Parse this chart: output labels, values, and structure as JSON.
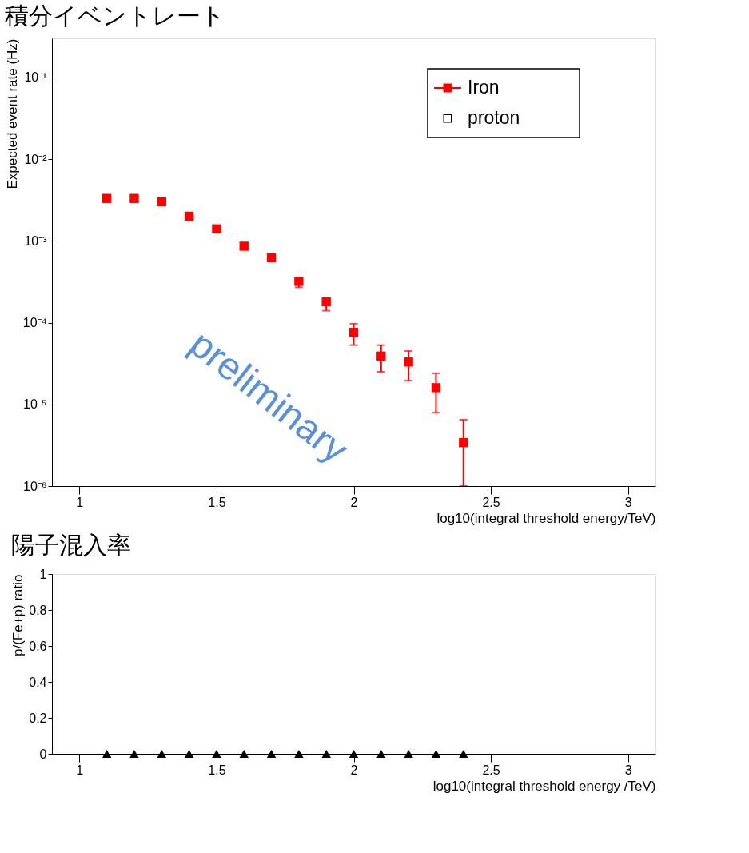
{
  "chart_data": [
    {
      "type": "scatter",
      "title": "積分イベントレート",
      "xlabel": "log10(integral threshold energy/TeV)",
      "ylabel": "Expected event rate (Hz)",
      "x": [
        1.1,
        1.2,
        1.3,
        1.4,
        1.5,
        1.6,
        1.7,
        1.8,
        1.9,
        2.0,
        2.1,
        2.2,
        2.3,
        2.4
      ],
      "series": [
        {
          "name": "Iron",
          "color": "#ff0000",
          "marker": "square",
          "values": [
            0.0033,
            0.0033,
            0.003,
            0.002,
            0.0014,
            0.00086,
            0.00062,
            0.00032,
            0.00018,
            7.6e-05,
            3.9e-05,
            3.3e-05,
            1.6e-05,
            3.4e-06
          ],
          "errors": [
            null,
            null,
            null,
            null,
            null,
            null,
            null,
            [
              0.00027,
              0.00032
            ],
            [
              0.00014,
              0.00018
            ],
            [
              5.3e-05,
              9.7e-05
            ],
            [
              2.5e-05,
              5.3e-05
            ],
            [
              1.95e-05,
              4.5e-05
            ],
            [
              7.9e-06,
              2.4e-05
            ],
            [
              1e-06,
              6.5e-06
            ]
          ]
        },
        {
          "name": "proton",
          "color": "#000000",
          "marker": "square",
          "values": [
            null,
            null,
            null,
            null,
            null,
            null,
            null,
            null,
            null,
            null,
            null,
            null,
            null,
            null
          ]
        }
      ],
      "xlim": [
        0.9,
        3.1
      ],
      "xticks": [
        1,
        1.5,
        2,
        2.5,
        3
      ],
      "log": true,
      "ylim": [
        1e-06,
        0.3
      ],
      "yticks": [
        {
          "value": 1e-06,
          "label": "10⁻⁶"
        },
        {
          "value": 1e-05,
          "label": "10⁻⁵"
        },
        {
          "value": 0.0001,
          "label": "10⁻⁴"
        },
        {
          "value": 0.001,
          "label": "10⁻³"
        },
        {
          "value": 0.01,
          "label": "10⁻²"
        },
        {
          "value": 0.1,
          "label": "10⁻¹"
        }
      ],
      "legend": "top right",
      "grid": false,
      "annotations": [
        "preliminary"
      ]
    },
    {
      "type": "scatter",
      "title": "陽子混入率",
      "xlabel": "log10(integral threshold energy /TeV)",
      "ylabel": "p/(Fe+p) ratio",
      "x": [
        1.1,
        1.2,
        1.3,
        1.4,
        1.5,
        1.6,
        1.7,
        1.8,
        1.9,
        2.0,
        2.1,
        2.2,
        2.3,
        2.4
      ],
      "series": [
        {
          "color": "#000000",
          "marker": "triangle",
          "values": [
            0,
            0,
            0,
            0,
            0,
            0,
            0,
            0,
            0,
            0,
            0,
            0,
            0,
            0
          ]
        }
      ],
      "xlim": [
        0.9,
        3.1
      ],
      "xticks": [
        1,
        1.5,
        2,
        2.5,
        3
      ],
      "ylim": [
        0,
        1
      ],
      "yticks": [
        0,
        0.2,
        0.4,
        0.6,
        0.8,
        1
      ],
      "legend": false,
      "grid": false
    }
  ]
}
